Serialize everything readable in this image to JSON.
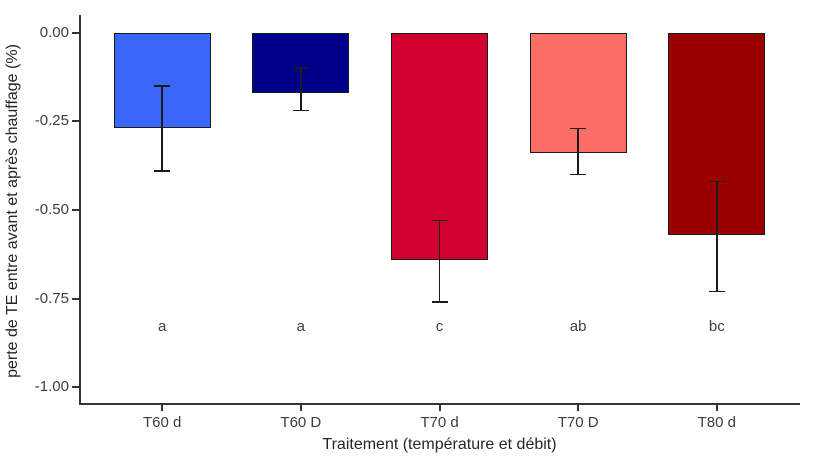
{
  "figure": {
    "background": "#FFFFFF",
    "axis_color": "#333333",
    "tick_text_color": "#3D3D3D",
    "title_text_color": "#262626",
    "bar_border_color": "#1A1A1A",
    "error_bar_color": "#1A1A1A"
  },
  "chart_data": {
    "type": "bar",
    "title": "",
    "xlabel": "Traitement (température et débit)",
    "ylabel": "perte de TE entre avant et après chauffage (%)",
    "categories": [
      "T60 d",
      "T60 D",
      "T70 d",
      "T70 D",
      "T80 d"
    ],
    "values": [
      -0.27,
      -0.17,
      -0.64,
      -0.34,
      -0.57
    ],
    "series": [
      {
        "name": "perte de TE",
        "values": [
          -0.27,
          -0.17,
          -0.64,
          -0.34,
          -0.57
        ]
      }
    ],
    "error_bars": {
      "high": [
        -0.15,
        -0.1,
        -0.53,
        -0.27,
        -0.42
      ],
      "low": [
        -0.39,
        -0.22,
        -0.76,
        -0.4,
        -0.73
      ]
    },
    "significance_letters": [
      "a",
      "a",
      "c",
      "ab",
      "bc"
    ],
    "letters_y": -0.83,
    "bar_colors": [
      "#3A66FA",
      "#00008B",
      "#D0002F",
      "#FC6E66",
      "#9B0000"
    ],
    "ylim": [
      -1.05,
      0.05
    ],
    "yticks": [
      0,
      -0.25,
      -0.5,
      -0.75,
      -1
    ],
    "ytick_labels": [
      "0.00",
      "-0.25",
      "-0.50",
      "-0.75",
      "-1.00"
    ],
    "grid": false,
    "legend": false,
    "bar_width_ratio": 0.7
  }
}
